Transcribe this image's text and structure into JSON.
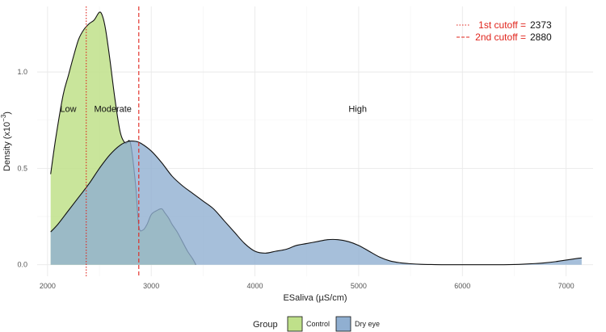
{
  "chart_data": {
    "type": "area",
    "xlabel": "ESaliva (µS/cm)",
    "ylabel": "Density (x10",
    "ylabel_exponent": "−3",
    "ylabel_suffix": ")",
    "xlim": [
      1900,
      7260
    ],
    "ylim": [
      -0.06,
      1.34
    ],
    "x_ticks": [
      2000,
      3000,
      4000,
      5000,
      6000,
      7000
    ],
    "x_tick_labels": [
      "2000",
      "3000",
      "4000",
      "5000",
      "6000",
      "7000"
    ],
    "y_ticks": [
      0.0,
      0.5,
      1.0
    ],
    "y_tick_labels": [
      "0.0",
      "0.5",
      "1.0"
    ],
    "grid": true,
    "legend_position": "bottom",
    "legend_title": "Group",
    "series": [
      {
        "name": "Control",
        "color": "#bfe08a",
        "x": [
          2030,
          2080,
          2150,
          2200,
          2250,
          2300,
          2350,
          2400,
          2450,
          2500,
          2530,
          2560,
          2600,
          2650,
          2700,
          2750,
          2800,
          2850,
          2880,
          2920,
          2960,
          3000,
          3050,
          3100,
          3130,
          3170,
          3200,
          3250,
          3300,
          3350,
          3400,
          3430
        ],
        "y": [
          0.47,
          0.66,
          0.88,
          0.98,
          1.08,
          1.17,
          1.22,
          1.25,
          1.27,
          1.31,
          1.29,
          1.22,
          1.07,
          0.86,
          0.69,
          0.63,
          0.63,
          0.41,
          0.2,
          0.18,
          0.21,
          0.26,
          0.28,
          0.29,
          0.27,
          0.24,
          0.21,
          0.17,
          0.12,
          0.07,
          0.03,
          0.0
        ]
      },
      {
        "name": "Dry eye",
        "color": "#90afd1",
        "x": [
          2030,
          2100,
          2200,
          2300,
          2400,
          2500,
          2600,
          2700,
          2780,
          2850,
          2900,
          3000,
          3100,
          3200,
          3300,
          3400,
          3500,
          3600,
          3700,
          3800,
          3900,
          4000,
          4100,
          4200,
          4300,
          4400,
          4500,
          4600,
          4700,
          4800,
          4900,
          5000,
          5100,
          5200,
          5300,
          5400,
          5500,
          5600,
          5700,
          5800,
          5900,
          6000,
          6100,
          6200,
          6300,
          6400,
          6500,
          6600,
          6700,
          6800,
          6900,
          7000,
          7100,
          7150
        ],
        "y": [
          0.17,
          0.21,
          0.28,
          0.35,
          0.42,
          0.5,
          0.57,
          0.62,
          0.64,
          0.64,
          0.63,
          0.59,
          0.53,
          0.46,
          0.41,
          0.37,
          0.33,
          0.29,
          0.23,
          0.17,
          0.11,
          0.07,
          0.06,
          0.07,
          0.08,
          0.1,
          0.11,
          0.12,
          0.13,
          0.13,
          0.12,
          0.1,
          0.07,
          0.04,
          0.02,
          0.01,
          0.005,
          0.002,
          0.001,
          0.0,
          0.0,
          0.0,
          0.0,
          0.0,
          0.0,
          0.0,
          0.001,
          0.003,
          0.006,
          0.01,
          0.016,
          0.024,
          0.032,
          0.035
        ]
      }
    ],
    "cutoffs": [
      {
        "label": "1st cutoff =",
        "value": 2373,
        "value_text": "2373",
        "style": "dotted",
        "color": "#e0241c"
      },
      {
        "label": "2nd cutoff =",
        "value": 2880,
        "value_text": "2880",
        "style": "dashed",
        "color": "#e0241c"
      }
    ],
    "annotations": [
      {
        "text": "Low",
        "x": 2200,
        "y": 0.81
      },
      {
        "text": "Moderate",
        "x": 2630,
        "y": 0.81
      },
      {
        "text": "High",
        "x": 4990,
        "y": 0.81
      }
    ]
  }
}
